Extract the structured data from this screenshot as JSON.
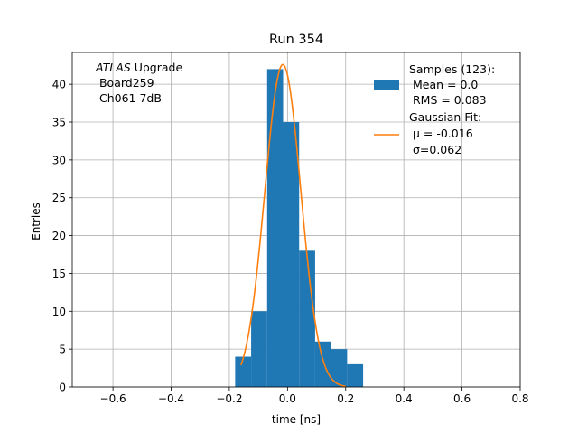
{
  "chart_data": {
    "type": "bar",
    "title": "Run 354",
    "xlabel": "time [ns]",
    "ylabel": "Entries",
    "xlim": [
      -0.74,
      0.8
    ],
    "ylim": [
      0,
      44.2
    ],
    "xticks": [
      -0.6,
      -0.4,
      -0.2,
      0.0,
      0.2,
      0.4,
      0.6,
      0.8
    ],
    "xtick_labels": [
      "−0.6",
      "−0.4",
      "−0.2",
      "0.0",
      "0.2",
      "0.4",
      "0.6",
      "0.8"
    ],
    "yticks": [
      0,
      5,
      10,
      15,
      20,
      25,
      30,
      35,
      40
    ],
    "ytick_labels": [
      "0",
      "5",
      "10",
      "15",
      "20",
      "25",
      "30",
      "35",
      "40"
    ],
    "grid": true,
    "series": [
      {
        "name": "Samples (123):",
        "type": "histogram",
        "color": "#1f77b4",
        "bin_edges": [
          -0.18,
          -0.125,
          -0.07,
          -0.015,
          0.04,
          0.095,
          0.15,
          0.205,
          0.26
        ],
        "values": [
          4,
          10,
          42,
          35,
          18,
          6,
          5,
          3
        ]
      },
      {
        "name": "Gaussian Fit:",
        "type": "line",
        "color": "#ff7f0e",
        "amplitude": 42.6,
        "mu": -0.016,
        "sigma": 0.062,
        "x_range": [
          -0.16,
          0.2
        ]
      }
    ],
    "annotation": {
      "italic": "ATLAS",
      "rest": " Upgrade",
      "lines": [
        " Board259",
        " Ch061 7dB"
      ]
    },
    "legend": {
      "position": "top-right",
      "samples_lines": [
        " Mean = 0.0",
        " RMS = 0.083"
      ],
      "fit_lines": [
        " μ = -0.016",
        " σ=0.062"
      ]
    }
  }
}
